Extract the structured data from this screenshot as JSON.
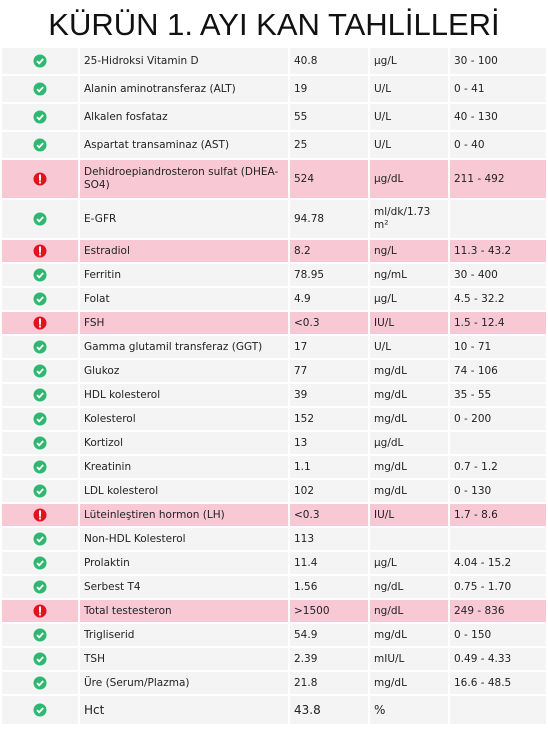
{
  "title": "KÜRÜN 1. AYI KAN TAHLİLLERİ",
  "table": {
    "rows": [
      {
        "flag": false,
        "cells": [
          "25-Hidroksi Vitamin D",
          "40.8",
          "µg/L",
          "30 - 100"
        ]
      },
      {
        "flag": false,
        "cells": [
          "Alanin aminotransferaz (ALT)",
          "19",
          "U/L",
          "0 - 41"
        ]
      },
      {
        "flag": false,
        "cells": [
          "Alkalen fosfataz",
          "55",
          "U/L",
          "40 - 130"
        ]
      },
      {
        "flag": false,
        "cells": [
          "Aspartat transaminaz (AST)",
          "25",
          "U/L",
          "0 - 40"
        ]
      },
      {
        "flag": true,
        "cells": [
          "Dehidroepiandrosteron sulfat (DHEA-SO4)",
          "524",
          "µg/dL",
          "211 - 492"
        ]
      },
      {
        "flag": false,
        "cells": [
          "E-GFR",
          "94.78",
          "ml/dk/1.73 m²",
          ""
        ]
      },
      {
        "flag": true,
        "cells": [
          "Estradiol",
          "8.2",
          "ng/L",
          "11.3 - 43.2"
        ]
      },
      {
        "flag": false,
        "cells": [
          "Ferritin",
          "78.95",
          "ng/mL",
          "30 - 400"
        ]
      },
      {
        "flag": false,
        "cells": [
          "Folat",
          "4.9",
          "µg/L",
          "4.5 - 32.2"
        ]
      },
      {
        "flag": true,
        "cells": [
          "FSH",
          "<0.3",
          "IU/L",
          "1.5 - 12.4"
        ]
      },
      {
        "flag": false,
        "cells": [
          "Gamma glutamil transferaz (GGT)",
          "17",
          "U/L",
          "10 - 71"
        ]
      },
      {
        "flag": false,
        "cells": [
          "Glukoz",
          "77",
          "mg/dL",
          "74 - 106"
        ]
      },
      {
        "flag": false,
        "cells": [
          "HDL kolesterol",
          "39",
          "mg/dL",
          "35 - 55"
        ]
      },
      {
        "flag": false,
        "cells": [
          "Kolesterol",
          "152",
          "mg/dL",
          "0 - 200"
        ]
      },
      {
        "flag": false,
        "cells": [
          "Kortizol",
          "13",
          "µg/dL",
          ""
        ]
      },
      {
        "flag": false,
        "cells": [
          "Kreatinin",
          "1.1",
          "mg/dL",
          "0.7 - 1.2"
        ]
      },
      {
        "flag": false,
        "cells": [
          "LDL kolesterol",
          "102",
          "mg/dL",
          "0 - 130"
        ]
      },
      {
        "flag": true,
        "cells": [
          "Lüteinleştiren hormon (LH)",
          "<0.3",
          "IU/L",
          "1.7 - 8.6"
        ]
      },
      {
        "flag": false,
        "cells": [
          "Non-HDL Kolesterol",
          "113",
          "",
          ""
        ]
      },
      {
        "flag": false,
        "cells": [
          "Prolaktin",
          "11.4",
          "µg/L",
          "4.04 - 15.2"
        ]
      },
      {
        "flag": false,
        "cells": [
          "Serbest T4",
          "1.56",
          "ng/dL",
          "0.75 - 1.70"
        ]
      },
      {
        "flag": true,
        "cells": [
          "Total testesteron",
          ">1500",
          "ng/dL",
          "249 - 836"
        ]
      },
      {
        "flag": false,
        "cells": [
          "Trigliserid",
          "54.9",
          "mg/dL",
          "0 - 150"
        ]
      },
      {
        "flag": false,
        "cells": [
          "TSH",
          "2.39",
          "mIU/L",
          "0.49 - 4.33"
        ]
      },
      {
        "flag": false,
        "cells": [
          "Üre (Serum/Plazma)",
          "21.8",
          "mg/dL",
          "16.6 - 48.5"
        ]
      },
      {
        "flag": false,
        "cells": [
          "Hct",
          "43.8",
          "%",
          ""
        ]
      }
    ]
  }
}
